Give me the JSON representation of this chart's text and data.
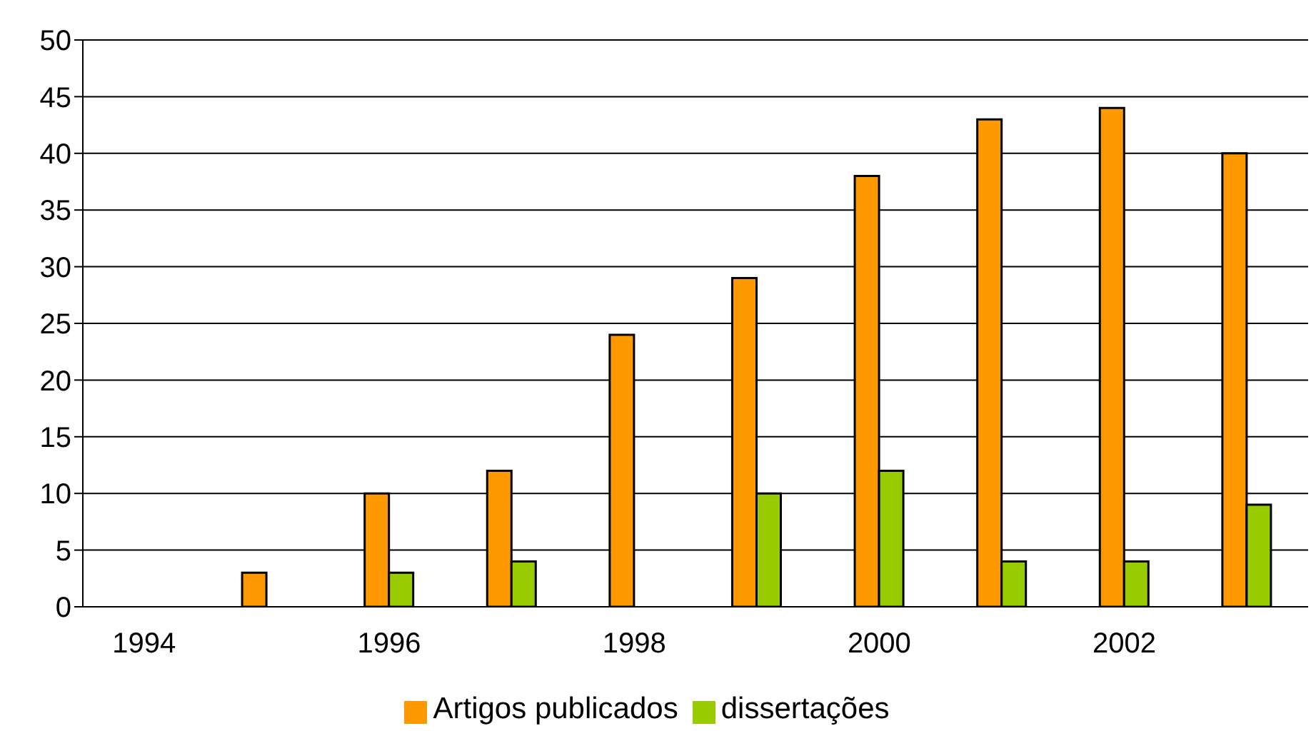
{
  "chart_data": {
    "type": "bar",
    "categories": [
      "1994",
      null,
      "1996",
      null,
      "1998",
      null,
      "2000",
      null,
      "2002",
      null
    ],
    "series": [
      {
        "name": "Artigos publicados",
        "color": "#ff9900",
        "values": [
          null,
          3,
          10,
          12,
          24,
          29,
          38,
          43,
          44,
          40
        ]
      },
      {
        "name": "dissertações",
        "color": "#99cc00",
        "values": [
          null,
          null,
          3,
          4,
          null,
          10,
          12,
          4,
          4,
          9
        ]
      }
    ],
    "ylim": [
      0,
      50
    ],
    "yticks": [
      0,
      5,
      10,
      15,
      20,
      25,
      30,
      35,
      40,
      45,
      50
    ],
    "grid": "y",
    "legend": "bottom"
  }
}
